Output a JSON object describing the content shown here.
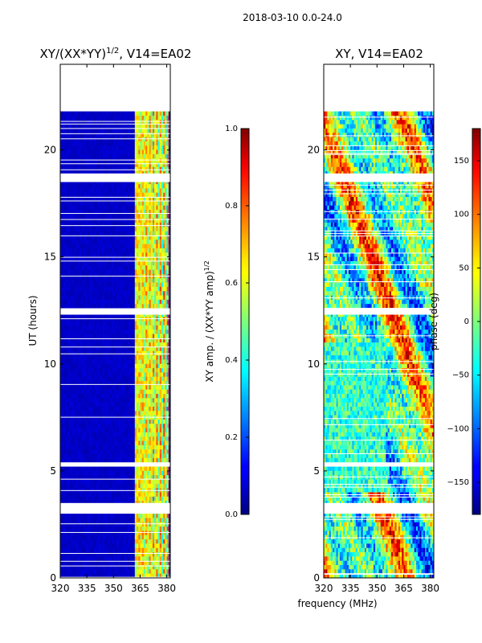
{
  "chart_data": [
    {
      "type": "heatmap",
      "suptitle": "2018-03-10 0.0-24.0",
      "title": "XY/(XX*YY)",
      "title_exp": "1/2",
      "title_tail": ", V14=EA02",
      "xlabel": "",
      "ylabel": "UT (hours)",
      "xlim": [
        320,
        382
      ],
      "ylim": [
        0,
        24
      ],
      "xticks": [
        320,
        335,
        350,
        365,
        380
      ],
      "yticks": [
        0,
        5,
        10,
        15,
        20
      ],
      "colorbar": {
        "label": "XY amp. / (XX*YY amp)",
        "label_exp": "1/2",
        "range": [
          0.0,
          1.0
        ],
        "ticks": [
          "0.0",
          "0.2",
          "0.4",
          "0.6",
          "0.8",
          "1.0"
        ],
        "tick_values": [
          0.0,
          0.2,
          0.4,
          0.6,
          0.8,
          1.0
        ]
      },
      "colormap": "jet",
      "description_values": {
        "background_level": 0.05,
        "band_level_range": [
          0.3,
          0.8
        ],
        "active_band_mhz": [
          362,
          382
        ],
        "flagged_hours": [
          [
            0.0,
            0.05
          ],
          [
            3.0,
            3.5
          ],
          [
            5.2,
            5.4
          ],
          [
            12.3,
            12.6
          ],
          [
            18.5,
            18.9
          ],
          [
            21.8,
            24.0
          ]
        ]
      }
    },
    {
      "type": "heatmap",
      "title": "XY, V14=EA02",
      "xlabel": "frequency (MHz)",
      "ylabel": "",
      "xlim": [
        320,
        382
      ],
      "ylim": [
        0,
        24
      ],
      "xticks": [
        320,
        335,
        350,
        365,
        380
      ],
      "yticks": [
        0,
        5,
        10,
        15,
        20
      ],
      "colorbar": {
        "label": "phase (deg)",
        "range": [
          -180,
          180
        ],
        "ticks": [
          "−150",
          "−100",
          "−50",
          "0",
          "50",
          "100",
          "150"
        ],
        "tick_values": [
          -150,
          -100,
          -50,
          0,
          50,
          100,
          150
        ]
      },
      "colormap": "jet",
      "description_values": {
        "phase_range_deg": [
          -180,
          180
        ],
        "flagged_hours": [
          [
            3.0,
            3.5
          ],
          [
            5.2,
            5.4
          ],
          [
            12.3,
            12.6
          ],
          [
            18.5,
            18.9
          ],
          [
            21.8,
            24.0
          ]
        ]
      }
    }
  ]
}
